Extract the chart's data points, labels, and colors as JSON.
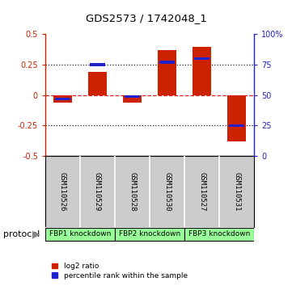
{
  "title": "GDS2573 / 1742048_1",
  "samples": [
    "GSM110526",
    "GSM110529",
    "GSM110528",
    "GSM110530",
    "GSM110527",
    "GSM110531"
  ],
  "log2_ratios": [
    -0.06,
    0.19,
    -0.06,
    0.37,
    0.4,
    -0.38
  ],
  "percentile_ranks": [
    47,
    75,
    49,
    77,
    80,
    25
  ],
  "proto_labels": [
    "FBP1 knockdown",
    "FBP2 knockdown",
    "FBP3 knockdown"
  ],
  "proto_ranges": [
    [
      0,
      1
    ],
    [
      2,
      3
    ],
    [
      4,
      5
    ]
  ],
  "proto_color": "#99ff99",
  "sample_bg_color": "#cccccc",
  "bar_color_red": "#cc2200",
  "bar_color_blue": "#2222cc",
  "ylim_left": [
    -0.5,
    0.5
  ],
  "ylim_right": [
    0,
    100
  ],
  "yticks_left": [
    -0.5,
    -0.25,
    0,
    0.25,
    0.5
  ],
  "yticks_right": [
    0,
    25,
    50,
    75,
    100
  ],
  "hline_color": "#dd2222",
  "dotted_line_color": "#222222",
  "background_color": "#ffffff",
  "protocol_label": "protocol",
  "legend_log2": "log2 ratio",
  "legend_pct": "percentile rank within the sample",
  "bar_width": 0.55,
  "blue_bar_width": 0.45,
  "blue_bar_height": 0.022
}
